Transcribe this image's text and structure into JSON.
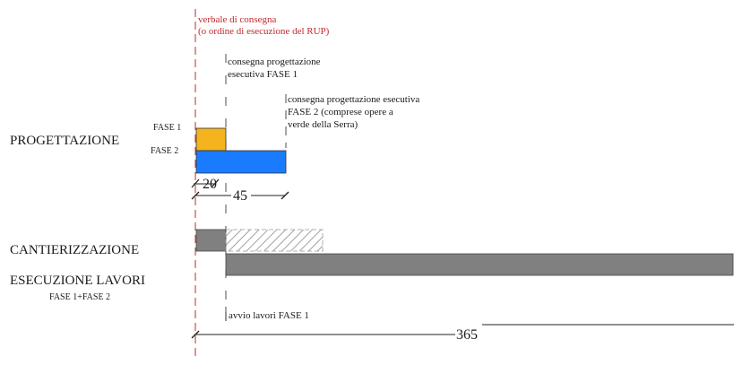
{
  "colors": {
    "red": "#c0282d",
    "fase1": "#f5b41e",
    "fase2": "#1a7bff",
    "gray": "#808080",
    "hatch": "#8a8a8a",
    "line": "#222222"
  },
  "notes": {
    "verbale_line1": "verbale di consegna",
    "verbale_line2": "(o ordine di esecuzione del RUP)",
    "fase1_line1": "consegna progettazione",
    "fase1_line2": "esecutiva FASE 1",
    "fase2_line1": "consegna progettazione esecutiva",
    "fase2_line2": "FASE 2 (comprese opere a",
    "fase2_line3": "verde della Serra)",
    "avvio": "avvio lavori FASE 1"
  },
  "rows": {
    "progettazione": "PROGETTAZIONE",
    "fase1": "FASE 1",
    "fase2": "FASE 2",
    "cantierizzazione": "CANTIERIZZAZIONE",
    "esecuzione": "ESECUZIONE LAVORI",
    "esecuzione_sub": "FASE 1+FASE 2"
  },
  "dimensions": {
    "d20": "20",
    "d45": "45",
    "d365": "365"
  }
}
